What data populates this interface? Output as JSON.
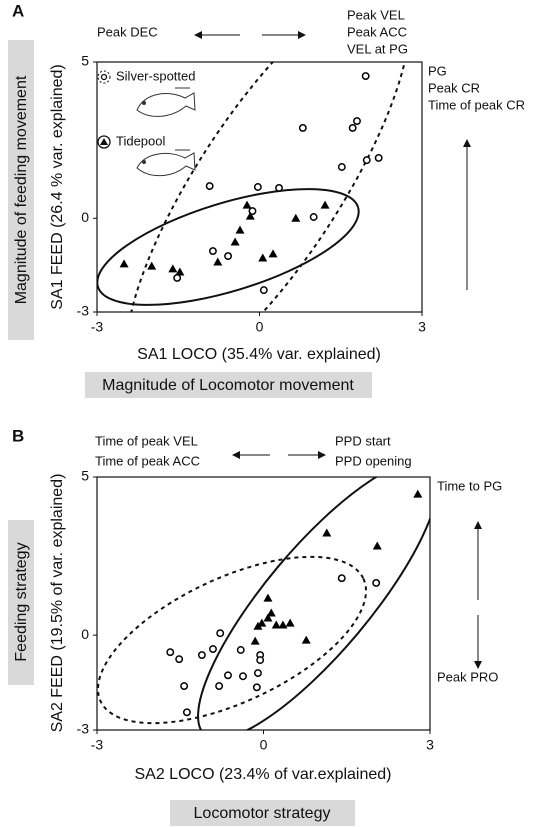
{
  "chart_data": [
    {
      "type": "scatter",
      "panel_label": "A",
      "x_label": "SA1 LOCO (35.4% var. explained)",
      "y_label": "SA1 FEED (26.4 % var. explained)",
      "x_strategy_label": "Magnitude of Locomotor movement",
      "y_strategy_label": "Magnitude of feeding movement",
      "annotations_x_negative": [
        "Peak DEC"
      ],
      "annotations_x_positive": [
        "Peak VEL",
        "Peak ACC",
        "VEL at PG"
      ],
      "annotations_y_positive": [
        "PG",
        "Peak CR",
        "Time of peak CR"
      ],
      "xlim": [
        -3,
        3
      ],
      "ylim": [
        -3,
        5
      ],
      "xticks": [
        -3,
        0,
        3
      ],
      "yticks": [
        -3,
        0,
        5
      ],
      "legend": true,
      "series": [
        {
          "name": "Silver-spotted",
          "marker": "circle",
          "color": "#000000",
          "x": [
            1.96,
            1.8,
            1.72,
            0.8,
            1.98,
            2.2,
            1.52,
            -0.92,
            -0.03,
            0.36,
            -0.13,
            1.0,
            -0.86,
            -0.58,
            -1.52,
            0.08
          ],
          "values": [
            4.55,
            3.11,
            2.89,
            2.89,
            1.86,
            1.93,
            1.64,
            1.03,
            1.0,
            0.97,
            0.23,
            0.04,
            -1.05,
            -1.21,
            -1.91,
            -2.3
          ]
        },
        {
          "name": "Tidepool",
          "marker": "triangle",
          "color": "#000000",
          "x": [
            -0.23,
            -0.17,
            0.67,
            1.21,
            -0.36,
            -0.45,
            -0.77,
            -2.5,
            -1.99,
            -1.6,
            -1.47,
            0.06,
            0.25
          ],
          "values": [
            0.42,
            0.07,
            0.0,
            0.42,
            -0.38,
            -0.76,
            -1.4,
            -1.46,
            -1.53,
            -1.62,
            -1.72,
            -1.27,
            -1.14
          ]
        }
      ]
    },
    {
      "type": "scatter",
      "panel_label": "B",
      "x_label": "SA2 LOCO (23.4% of var.explained)",
      "y_label": "SA2 FEED (19.5% of var. explained)",
      "x_strategy_label": "Locomotor strategy",
      "y_strategy_label": "Feeding strategy",
      "annotations_x_negative": [
        "Time of peak VEL",
        "Time of peak ACC"
      ],
      "annotations_x_positive": [
        "PPD start",
        "PPD opening"
      ],
      "annotations_y_positive": [
        "Time to PG"
      ],
      "annotations_y_negative": [
        "Peak PRO"
      ],
      "xlim": [
        -3,
        3
      ],
      "ylim": [
        -3,
        5
      ],
      "xticks": [
        -3,
        0,
        3
      ],
      "yticks": [
        -3,
        0,
        5
      ],
      "legend": false,
      "series": [
        {
          "marker": "circle",
          "color": "#000000",
          "x": [
            1.41,
            2.03,
            -1.68,
            -1.52,
            -1.11,
            -0.91,
            -0.78,
            -0.41,
            -0.06,
            -0.64,
            -0.37,
            -0.1,
            -0.06,
            -0.8,
            -1.43,
            -0.12,
            -1.38
          ],
          "values": [
            1.8,
            1.65,
            -0.54,
            -0.76,
            -0.63,
            -0.44,
            0.06,
            -0.47,
            -0.63,
            -1.27,
            -1.3,
            -1.2,
            -0.79,
            -1.61,
            -1.61,
            -1.65,
            -2.44
          ]
        },
        {
          "marker": "triangle",
          "color": "#000000",
          "x": [
            2.78,
            1.14,
            2.05,
            0.08,
            0.14,
            -0.03,
            0.08,
            0.23,
            0.35,
            0.48,
            -0.1,
            0.77,
            -0.15
          ],
          "values": [
            4.46,
            3.23,
            2.82,
            1.17,
            0.7,
            0.38,
            0.54,
            0.32,
            0.32,
            0.38,
            0.28,
            -0.16,
            -0.19
          ]
        }
      ]
    }
  ]
}
